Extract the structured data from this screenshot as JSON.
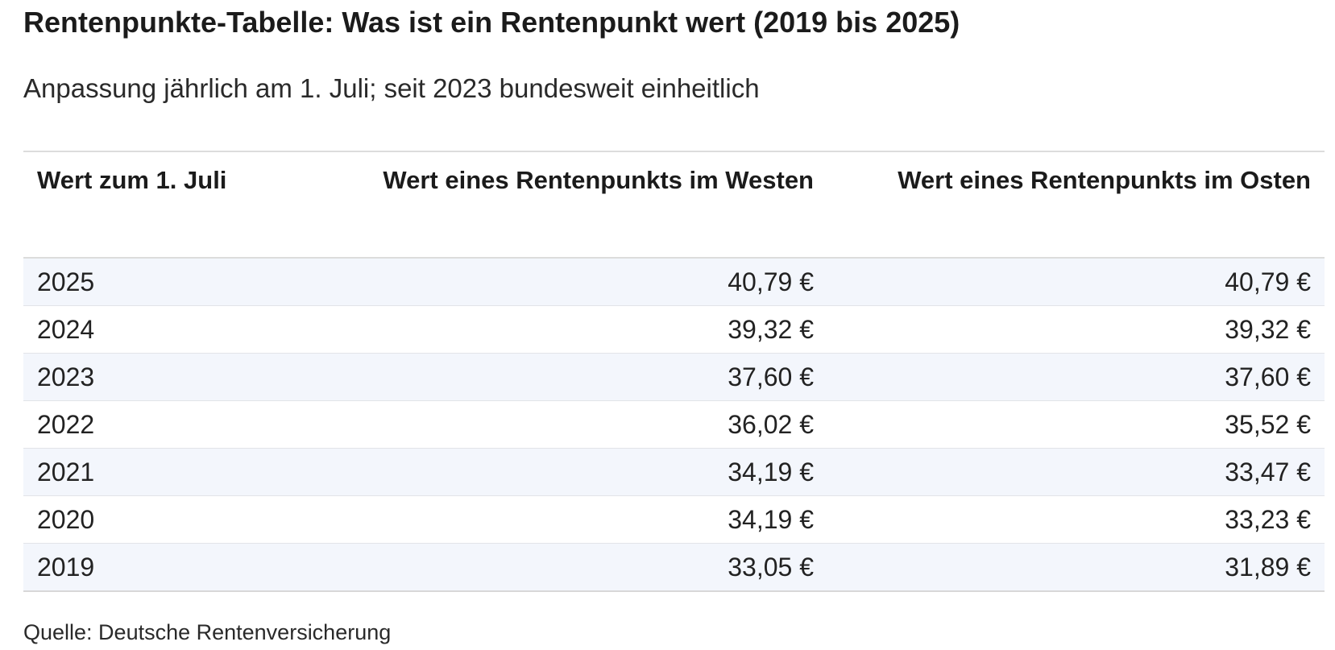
{
  "title": "Rentenpunkte-Tabelle: Was ist ein Rentenpunkt wert (2019 bis 2025)",
  "subtitle": "Anpassung jährlich am 1. Juli; seit 2023 bundesweit einheitlich",
  "source": "Quelle: Deutsche Rentenversicherung",
  "colors": {
    "row_band": "#f3f6fc",
    "text": "#1b1b1b",
    "rule": "#dcdcdc"
  },
  "chart_data": {
    "type": "table",
    "title": "Rentenpunkte-Tabelle: Was ist ein Rentenpunkt wert (2019 bis 2025)",
    "subtitle": "Anpassung jährlich am 1. Juli; seit 2023 bundesweit einheitlich",
    "columns": [
      "Wert zum 1. Juli",
      "Wert eines Rentenpunkts im Westen",
      "Wert eines Rentenpunkts im Osten"
    ],
    "rows": [
      [
        "2025",
        "40,79 €",
        "40,79 €"
      ],
      [
        "2024",
        "39,32 €",
        "39,32 €"
      ],
      [
        "2023",
        "37,60 €",
        "37,60 €"
      ],
      [
        "2022",
        "36,02 €",
        "35,52 €"
      ],
      [
        "2021",
        "34,19 €",
        "33,47 €"
      ],
      [
        "2020",
        "34,19 €",
        "33,23 €"
      ],
      [
        "2019",
        "33,05 €",
        "31,89 €"
      ]
    ],
    "source": "Quelle: Deutsche Rentenversicherung"
  }
}
